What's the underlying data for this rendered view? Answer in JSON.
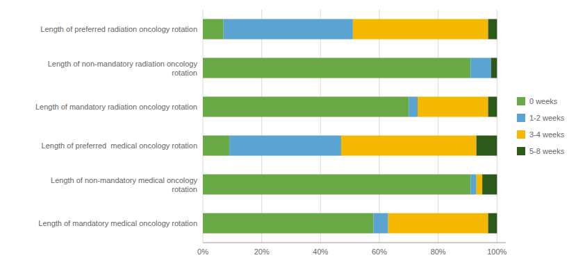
{
  "chart_data": {
    "type": "bar",
    "orientation": "horizontal",
    "stacked": true,
    "categories": [
      "Length of preferred radiation oncology rotation",
      "Length of non-mandatory radiation oncology\nrotation",
      "Length of mandatory radiation oncology rotation",
      "Length of preferred  medical oncology rotation",
      "Length of non-mandatory medical oncology\nrotation",
      "Length of mandatory medical oncology rotation"
    ],
    "series": [
      {
        "name": "0 weeks",
        "color": "#6aaa46",
        "values": [
          7,
          91,
          70,
          9,
          91,
          58
        ]
      },
      {
        "name": "1-2 weeks",
        "color": "#5ba3d0",
        "values": [
          44,
          7,
          3,
          38,
          2,
          5
        ]
      },
      {
        "name": "3-4 weeks",
        "color": "#f5b800",
        "values": [
          46,
          0,
          24,
          46,
          2,
          34
        ]
      },
      {
        "name": "5-8 weeks",
        "color": "#2d5a1b",
        "values": [
          3,
          2,
          3,
          7,
          5,
          3
        ]
      }
    ],
    "xlim": [
      0,
      103
    ],
    "xticks": [
      {
        "value": 0,
        "label": "0%"
      },
      {
        "value": 20,
        "label": "20%"
      },
      {
        "value": 40,
        "label": "40%"
      },
      {
        "value": 60,
        "label": "60%"
      },
      {
        "value": 80,
        "label": "80%"
      },
      {
        "value": 100,
        "label": "100%"
      }
    ],
    "grid": true,
    "legend": "right"
  }
}
